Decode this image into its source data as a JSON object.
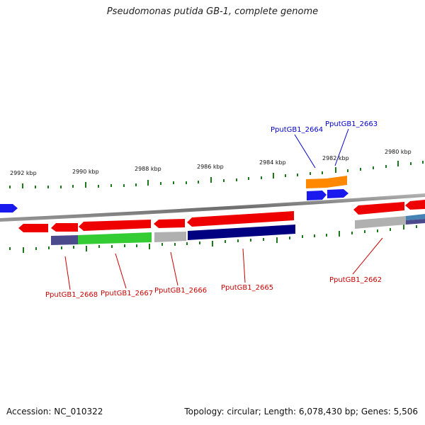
{
  "title": "Pseudomonas putida GB-1, complete genome",
  "accession": "Accession: NC_010322",
  "summary": "Topology: circular; Length: 6,078,430 bp; Genes: 5,506",
  "scale_labels": [
    "2992 kbp",
    "2990 kbp",
    "2988 kbp",
    "2986 kbp",
    "2984 kbp",
    "2982 kbp",
    "2980 kbp"
  ],
  "genes": {
    "g2668": "PputGB1_2668",
    "g2667": "PputGB1_2667",
    "g2666": "PputGB1_2666",
    "g2665": "PputGB1_2665",
    "g2664": "PputGB1_2664",
    "g2663": "PputGB1_2663",
    "g2662": "PputGB1_2662"
  },
  "colors": {
    "backbone": "#808080",
    "forward_cds": "#ee0000",
    "reverse_blue": "#1a1aee",
    "navy": "#000080",
    "green": "#33cc33",
    "gray": "#b0b0b0",
    "slate": "#4a4a8c",
    "orange": "#ff8800",
    "steel": "#4682b4",
    "tick": "#1a7a1a"
  }
}
